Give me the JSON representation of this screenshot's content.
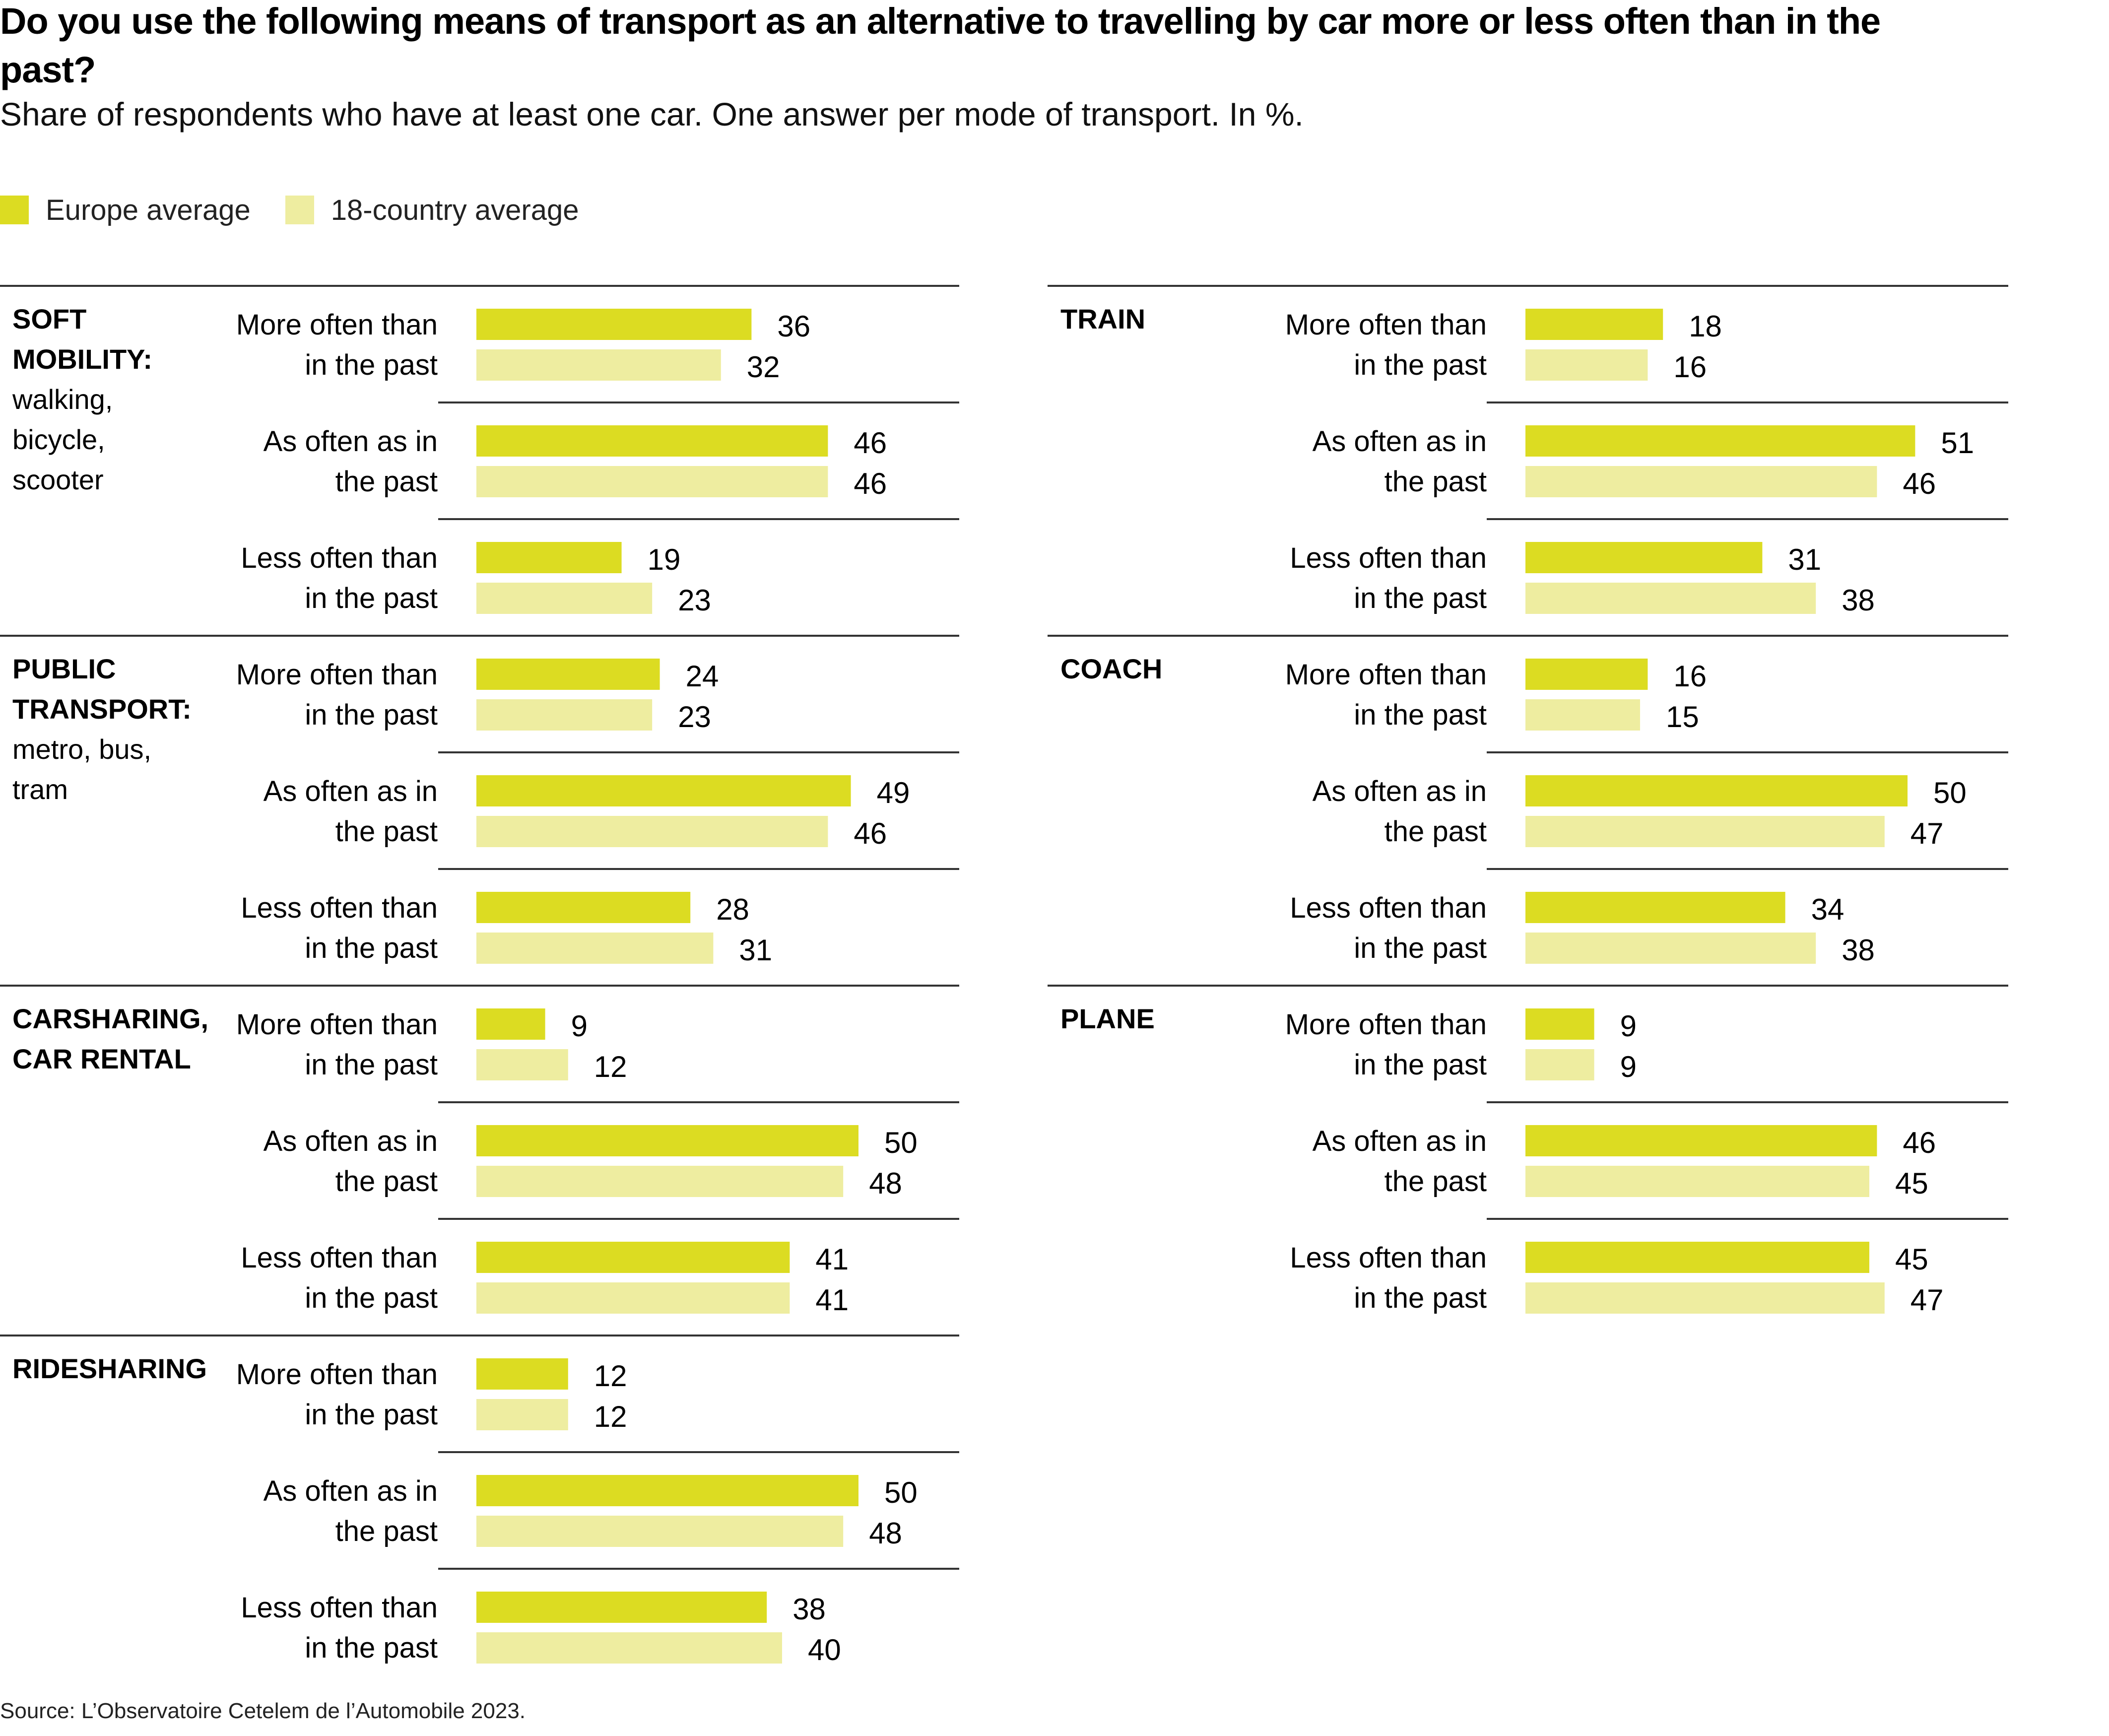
{
  "title": "Do you use the following means of transport as an alternative to travelling by car more or less often than in the past?",
  "subtitle": "Share of respondents who have at least one car. One answer per mode of transport. In %.",
  "legend": [
    {
      "label": "Europe average",
      "color": "#DCDC22"
    },
    {
      "label": "18-country average",
      "color": "#EEEDA0"
    }
  ],
  "source": "Source: L’Observatoire Cetelem de l’Automobile 2023.",
  "chart_data": {
    "type": "bar",
    "orientation": "horizontal",
    "title": "Do you use the following means of transport as an alternative to travelling by car more or less often than in the past?",
    "subtitle": "Share of respondents who have at least one car. One answer per mode of transport. In %.",
    "unit": "%",
    "series_names": [
      "Europe average",
      "18-country average"
    ],
    "answers": [
      [
        "More often than",
        "in the past"
      ],
      [
        "As often as in",
        "the past"
      ],
      [
        "Less often than",
        "in the past"
      ]
    ],
    "groups": [
      {
        "column": "left",
        "title_lines": [
          "SOFT",
          "MOBILITY:"
        ],
        "sub_lines": [
          "walking,",
          "bicycle,",
          "scooter"
        ],
        "europe": [
          36,
          46,
          19
        ],
        "country18": [
          32,
          46,
          23
        ]
      },
      {
        "column": "left",
        "title_lines": [
          "PUBLIC",
          "TRANSPORT:"
        ],
        "sub_lines": [
          "metro, bus,",
          "tram"
        ],
        "europe": [
          24,
          49,
          28
        ],
        "country18": [
          23,
          46,
          31
        ]
      },
      {
        "column": "left",
        "title_lines": [
          "CARSHARING,",
          "CAR RENTAL"
        ],
        "sub_lines": [],
        "europe": [
          9,
          50,
          41
        ],
        "country18": [
          12,
          48,
          41
        ]
      },
      {
        "column": "left",
        "title_lines": [
          "RIDESHARING"
        ],
        "sub_lines": [],
        "europe": [
          12,
          50,
          38
        ],
        "country18": [
          12,
          48,
          40
        ]
      },
      {
        "column": "right",
        "title_lines": [
          "TRAIN"
        ],
        "sub_lines": [],
        "europe": [
          18,
          51,
          31
        ],
        "country18": [
          16,
          46,
          38
        ]
      },
      {
        "column": "right",
        "title_lines": [
          "COACH"
        ],
        "sub_lines": [],
        "europe": [
          16,
          50,
          34
        ],
        "country18": [
          15,
          47,
          38
        ]
      },
      {
        "column": "right",
        "title_lines": [
          "PLANE"
        ],
        "sub_lines": [],
        "europe": [
          9,
          46,
          45
        ],
        "country18": [
          9,
          45,
          47
        ]
      }
    ],
    "grid": false,
    "legend_position": "top-left"
  }
}
